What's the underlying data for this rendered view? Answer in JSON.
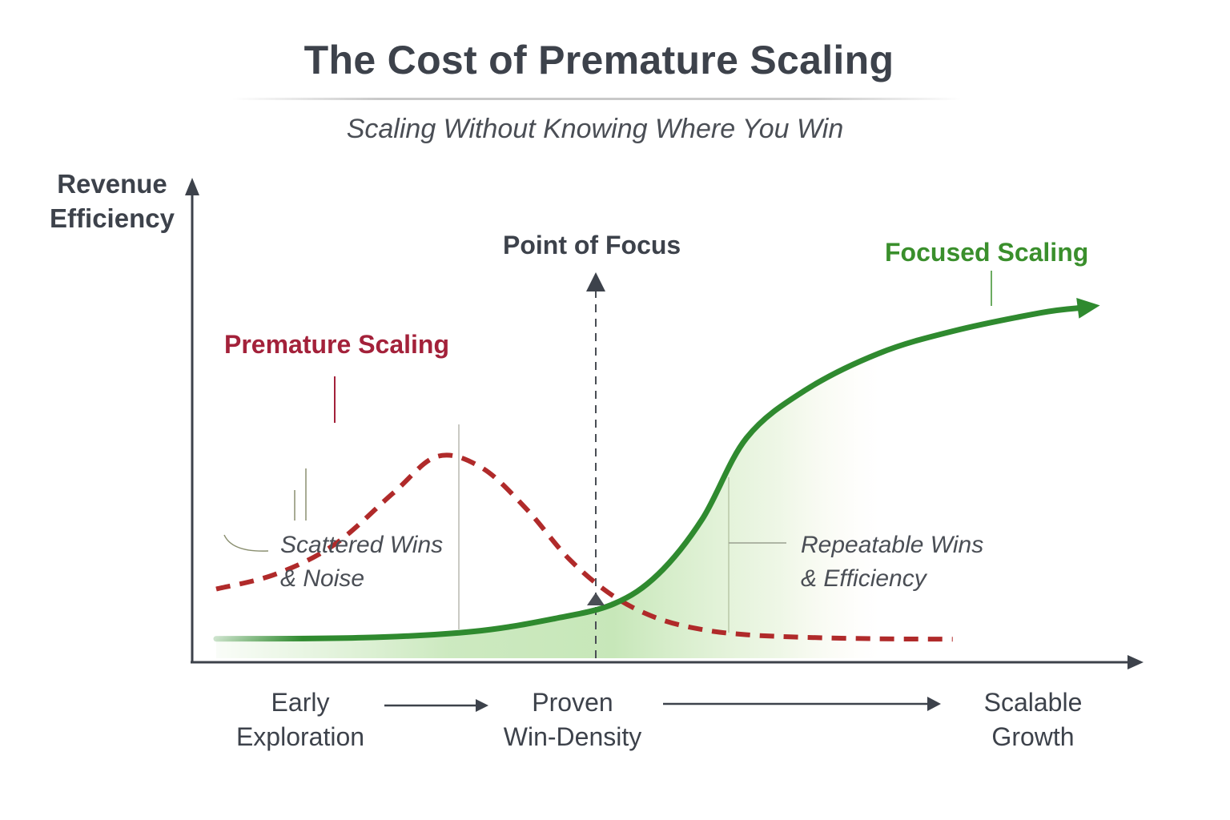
{
  "chart_data": {
    "type": "line",
    "title": "The Cost of Premature Scaling",
    "subtitle": "Scaling Without Knowing Where You Win",
    "ylabel_lines": [
      "Revenue",
      "Efficiency"
    ],
    "xlabel": "",
    "x_stages": [
      {
        "lines": [
          "Early",
          "Exploration"
        ]
      },
      {
        "lines": [
          "Proven",
          "Win-Density"
        ]
      },
      {
        "lines": [
          "Scalable",
          "Growth"
        ]
      }
    ],
    "focus_marker": {
      "label": "Point of Focus"
    },
    "series": [
      {
        "name": "Premature Scaling",
        "style": "dashed",
        "color": "#b02a2a",
        "label_color": "#a3213a",
        "x": [
          0,
          8,
          16,
          24,
          30,
          36,
          42,
          48,
          54,
          60,
          66,
          72,
          80,
          90,
          100
        ],
        "y": [
          14,
          18,
          26,
          40,
          50,
          47,
          36,
          22,
          12,
          6,
          3,
          1.6,
          0.9,
          0.5,
          0.4
        ]
      },
      {
        "name": "Focused Scaling",
        "style": "solid",
        "color": "#2f8a2f",
        "label_color": "#3a8f2c",
        "x": [
          0,
          20,
          35,
          46,
          54,
          60,
          66,
          72,
          80,
          90,
          100,
          112,
          120
        ],
        "y": [
          0.5,
          0.8,
          2.5,
          6,
          10,
          18,
          33,
          55,
          68,
          78,
          84,
          89,
          91
        ]
      }
    ],
    "annotations": [
      {
        "lines": [
          "Scattered Wins",
          "& Noise"
        ]
      },
      {
        "lines": [
          "Repeatable Wins",
          "& Efficiency"
        ]
      }
    ],
    "xlim": [
      0,
      122
    ],
    "ylim": [
      0,
      100
    ],
    "grid": false,
    "legend": "none"
  }
}
